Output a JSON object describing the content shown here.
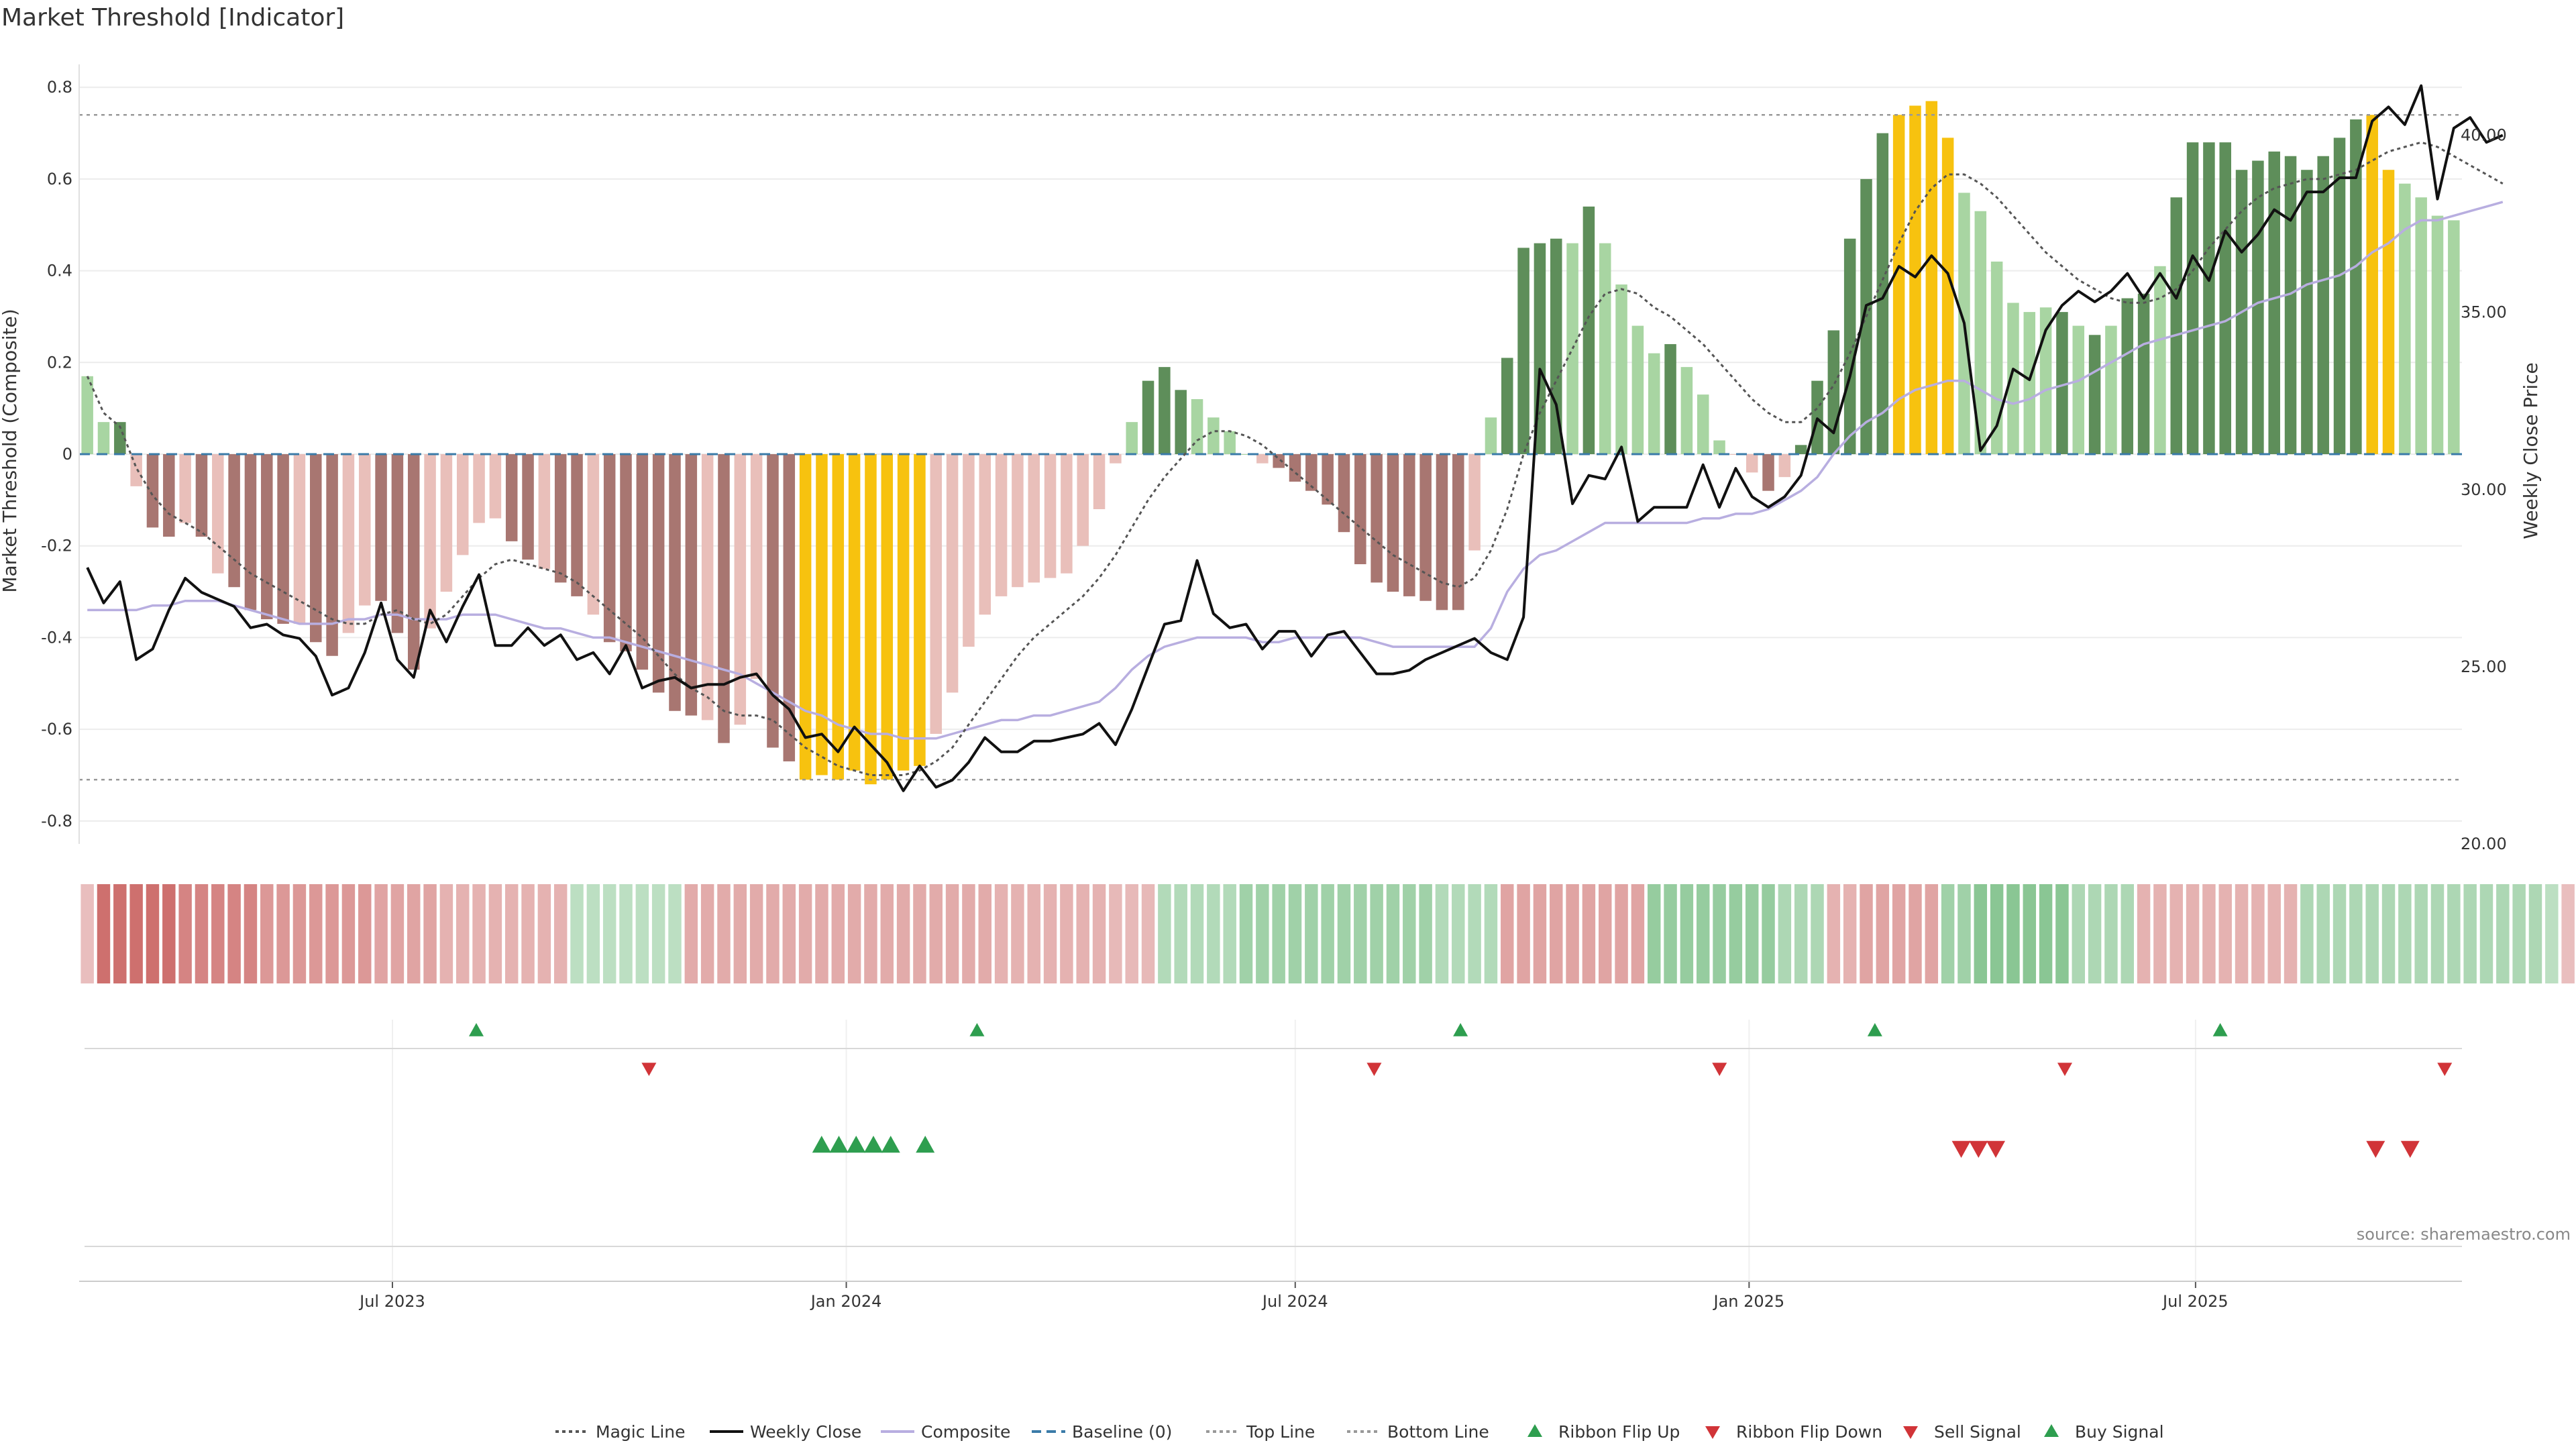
{
  "chart_data": {
    "type": "bar",
    "title": "Market Threshold [Indicator]",
    "ylabel_left": "Market Threshold (Composite)",
    "ylabel_right": "Weekly Close Price",
    "ylim_left": [
      -0.85,
      0.85
    ],
    "ylim_right": [
      20.0,
      42.0
    ],
    "yticks_left": [
      "0.8",
      "0.6",
      "0.4",
      "0.2",
      "0",
      "-0.2",
      "-0.4",
      "-0.6",
      "-0.8"
    ],
    "yticks_left_values": [
      0.8,
      0.6,
      0.4,
      0.2,
      0,
      -0.2,
      -0.4,
      -0.6,
      -0.8
    ],
    "yticks_right": [
      "40.00",
      "35.00",
      "30.00",
      "25.00",
      "20.00"
    ],
    "yticks_right_values": [
      40,
      35,
      30,
      25,
      20
    ],
    "x_range": [
      "2023-02-24",
      "2025-10-17"
    ],
    "xticks": [
      "Jul 2023",
      "Jan 2024",
      "Jul 2024",
      "Jan 2025",
      "Jul 2025"
    ],
    "xticks_dates": [
      "2023-07-01",
      "2024-01-01",
      "2024-07-01",
      "2025-01-01",
      "2025-07-01"
    ],
    "top_line": 0.74,
    "bottom_line": -0.71,
    "grid": true,
    "legend_placement": "bottom-center",
    "colors": {
      "strong_green": "#5e8e5a",
      "light_green": "#a8d5a2",
      "strong_red": "#a87671",
      "light_red": "#e9bfba",
      "extreme": "#f7c20f",
      "weekly_close": "#111111",
      "composite": "#b8aee0",
      "magic": "#555555",
      "baseline": "#3a7ba8",
      "flip_up": "#2e9e4f",
      "flip_down": "#d13438"
    },
    "bars": [
      0.17,
      0.07,
      0.07,
      -0.07,
      -0.16,
      -0.18,
      -0.15,
      -0.18,
      -0.26,
      -0.29,
      -0.34,
      -0.36,
      -0.37,
      -0.37,
      -0.41,
      -0.44,
      -0.39,
      -0.33,
      -0.32,
      -0.39,
      -0.47,
      -0.38,
      -0.3,
      -0.22,
      -0.15,
      -0.14,
      -0.19,
      -0.23,
      -0.25,
      -0.28,
      -0.31,
      -0.35,
      -0.41,
      -0.43,
      -0.47,
      -0.52,
      -0.56,
      -0.57,
      -0.58,
      -0.63,
      -0.59,
      -0.49,
      -0.64,
      -0.67,
      -0.71,
      -0.7,
      -0.71,
      -0.69,
      -0.72,
      -0.71,
      -0.69,
      -0.68,
      -0.61,
      -0.52,
      -0.42,
      -0.35,
      -0.31,
      -0.29,
      -0.28,
      -0.27,
      -0.26,
      -0.2,
      -0.12,
      -0.02,
      0.07,
      0.16,
      0.19,
      0.14,
      0.12,
      0.08,
      0.05,
      0.0,
      -0.02,
      -0.03,
      -0.06,
      -0.08,
      -0.11,
      -0.17,
      -0.24,
      -0.28,
      -0.3,
      -0.31,
      -0.32,
      -0.34,
      -0.34,
      -0.21,
      0.08,
      0.21,
      0.45,
      0.46,
      0.47,
      0.46,
      0.54,
      0.46,
      0.37,
      0.28,
      0.22,
      0.24,
      0.19,
      0.13,
      0.03,
      0.0,
      -0.04,
      -0.08,
      -0.05,
      0.02,
      0.16,
      0.27,
      0.47,
      0.6,
      0.7,
      0.74,
      0.76,
      0.77,
      0.69,
      0.57,
      0.53,
      0.42,
      0.33,
      0.31,
      0.32,
      0.31,
      0.28,
      0.26,
      0.28,
      0.34,
      0.35,
      0.41,
      0.56,
      0.68,
      0.68,
      0.68,
      0.62,
      0.64,
      0.66,
      0.65,
      0.62,
      0.65,
      0.69,
      0.73,
      0.74,
      0.62,
      0.59,
      0.56,
      0.52,
      0.51
    ],
    "bar_classes": [
      "lg",
      "lg",
      "sg",
      "lr",
      "sr",
      "sr",
      "lr",
      "sr",
      "lr",
      "sr",
      "sr",
      "sr",
      "sr",
      "lr",
      "sr",
      "sr",
      "lr",
      "lr",
      "sr",
      "sr",
      "sr",
      "lr",
      "lr",
      "lr",
      "lr",
      "lr",
      "sr",
      "sr",
      "lr",
      "sr",
      "sr",
      "lr",
      "sr",
      "sr",
      "sr",
      "sr",
      "sr",
      "sr",
      "lr",
      "sr",
      "lr",
      "lr",
      "sr",
      "sr",
      "ex",
      "ex",
      "ex",
      "ex",
      "ex",
      "ex",
      "ex",
      "ex",
      "lr",
      "lr",
      "lr",
      "lr",
      "lr",
      "lr",
      "lr",
      "lr",
      "lr",
      "lr",
      "lr",
      "lr",
      "lg",
      "sg",
      "sg",
      "sg",
      "lg",
      "lg",
      "lg",
      "lg",
      "lr",
      "sr",
      "sr",
      "sr",
      "sr",
      "sr",
      "sr",
      "sr",
      "sr",
      "sr",
      "sr",
      "sr",
      "sr",
      "lr",
      "lg",
      "sg",
      "sg",
      "sg",
      "sg",
      "lg",
      "sg",
      "lg",
      "lg",
      "lg",
      "lg",
      "sg",
      "lg",
      "lg",
      "lg",
      "lr",
      "lr",
      "sr",
      "lr",
      "sg",
      "sg",
      "sg",
      "sg",
      "sg",
      "sg",
      "ex",
      "ex",
      "ex",
      "ex",
      "lg",
      "lg",
      "lg",
      "lg",
      "lg",
      "lg",
      "sg",
      "lg",
      "sg",
      "lg",
      "sg",
      "sg",
      "lg",
      "sg",
      "sg",
      "sg",
      "sg",
      "sg",
      "sg",
      "sg",
      "sg",
      "sg",
      "sg",
      "sg",
      "sg",
      "ex",
      "ex",
      "lg",
      "lg",
      "lg",
      "lg",
      "lg"
    ],
    "weekly_close": [
      27.8,
      26.8,
      27.4,
      25.2,
      25.5,
      26.6,
      27.5,
      27.1,
      26.9,
      26.7,
      26.1,
      26.2,
      25.9,
      25.8,
      25.3,
      24.2,
      24.4,
      25.4,
      26.8,
      25.2,
      24.7,
      26.6,
      25.7,
      26.7,
      27.6,
      25.6,
      25.6,
      26.1,
      25.6,
      25.9,
      25.2,
      25.4,
      24.8,
      25.6,
      24.4,
      24.6,
      24.7,
      24.4,
      24.5,
      24.5,
      24.7,
      24.8,
      24.2,
      23.8,
      23.0,
      23.1,
      22.6,
      23.3,
      22.8,
      22.3,
      21.5,
      22.2,
      21.6,
      21.8,
      22.3,
      23.0,
      22.6,
      22.6,
      22.9,
      22.9,
      23.0,
      23.1,
      23.4,
      22.8,
      23.8,
      25.0,
      26.2,
      26.3,
      28.0,
      26.5,
      26.1,
      26.2,
      25.5,
      26.0,
      26.0,
      25.3,
      25.9,
      26.0,
      25.4,
      24.8,
      24.8,
      24.9,
      25.2,
      25.4,
      25.6,
      25.8,
      25.4,
      25.2,
      26.4,
      33.4,
      32.4,
      29.6,
      30.4,
      30.3,
      31.2,
      29.1,
      29.5,
      29.5,
      29.5,
      30.7,
      29.5,
      30.6,
      29.8,
      29.5,
      29.8,
      30.4,
      32.0,
      31.6,
      33.2,
      35.2,
      35.4,
      36.3,
      36.0,
      36.6,
      36.1,
      34.7,
      31.1,
      31.8,
      33.4,
      33.1,
      34.5,
      35.2,
      35.6,
      35.3,
      35.6,
      36.1,
      35.4,
      36.1,
      35.4,
      36.6,
      35.9,
      37.3,
      36.7,
      37.2,
      37.9,
      37.6,
      38.4,
      38.4,
      38.8,
      38.8,
      40.4,
      40.8,
      40.3,
      41.4,
      38.2,
      40.2,
      40.5,
      39.8,
      40.0
    ],
    "composite": [
      -0.34,
      -0.34,
      -0.34,
      -0.34,
      -0.33,
      -0.33,
      -0.32,
      -0.32,
      -0.32,
      -0.33,
      -0.34,
      -0.35,
      -0.36,
      -0.37,
      -0.37,
      -0.37,
      -0.36,
      -0.36,
      -0.35,
      -0.35,
      -0.36,
      -0.36,
      -0.36,
      -0.35,
      -0.35,
      -0.35,
      -0.36,
      -0.37,
      -0.38,
      -0.38,
      -0.39,
      -0.4,
      -0.4,
      -0.41,
      -0.42,
      -0.43,
      -0.44,
      -0.45,
      -0.46,
      -0.47,
      -0.48,
      -0.5,
      -0.52,
      -0.54,
      -0.56,
      -0.57,
      -0.59,
      -0.6,
      -0.61,
      -0.61,
      -0.62,
      -0.62,
      -0.62,
      -0.61,
      -0.6,
      -0.59,
      -0.58,
      -0.58,
      -0.57,
      -0.57,
      -0.56,
      -0.55,
      -0.54,
      -0.51,
      -0.47,
      -0.44,
      -0.42,
      -0.41,
      -0.4,
      -0.4,
      -0.4,
      -0.4,
      -0.41,
      -0.41,
      -0.4,
      -0.4,
      -0.4,
      -0.4,
      -0.4,
      -0.41,
      -0.42,
      -0.42,
      -0.42,
      -0.42,
      -0.42,
      -0.42,
      -0.38,
      -0.3,
      -0.25,
      -0.22,
      -0.21,
      -0.19,
      -0.17,
      -0.15,
      -0.15,
      -0.15,
      -0.15,
      -0.15,
      -0.15,
      -0.14,
      -0.14,
      -0.13,
      -0.13,
      -0.12,
      -0.1,
      -0.08,
      -0.05,
      0.0,
      0.04,
      0.07,
      0.09,
      0.12,
      0.14,
      0.15,
      0.16,
      0.16,
      0.14,
      0.12,
      0.11,
      0.12,
      0.14,
      0.15,
      0.16,
      0.18,
      0.2,
      0.22,
      0.24,
      0.25,
      0.26,
      0.27,
      0.28,
      0.29,
      0.31,
      0.33,
      0.34,
      0.35,
      0.37,
      0.38,
      0.39,
      0.41,
      0.44,
      0.46,
      0.49,
      0.51,
      0.51,
      0.52,
      0.53,
      0.54,
      0.55
    ],
    "magic_line": [
      0.17,
      0.09,
      0.06,
      -0.03,
      -0.09,
      -0.13,
      -0.15,
      -0.17,
      -0.2,
      -0.23,
      -0.26,
      -0.28,
      -0.3,
      -0.32,
      -0.34,
      -0.36,
      -0.37,
      -0.37,
      -0.35,
      -0.34,
      -0.36,
      -0.37,
      -0.35,
      -0.31,
      -0.27,
      -0.24,
      -0.23,
      -0.24,
      -0.25,
      -0.26,
      -0.28,
      -0.31,
      -0.34,
      -0.37,
      -0.4,
      -0.44,
      -0.48,
      -0.51,
      -0.53,
      -0.56,
      -0.57,
      -0.57,
      -0.58,
      -0.61,
      -0.64,
      -0.66,
      -0.68,
      -0.69,
      -0.7,
      -0.7,
      -0.7,
      -0.69,
      -0.67,
      -0.64,
      -0.59,
      -0.54,
      -0.49,
      -0.44,
      -0.4,
      -0.37,
      -0.34,
      -0.31,
      -0.27,
      -0.22,
      -0.16,
      -0.1,
      -0.05,
      -0.01,
      0.03,
      0.05,
      0.05,
      0.04,
      0.02,
      -0.01,
      -0.04,
      -0.07,
      -0.1,
      -0.13,
      -0.16,
      -0.19,
      -0.22,
      -0.24,
      -0.26,
      -0.28,
      -0.29,
      -0.27,
      -0.21,
      -0.12,
      0.0,
      0.09,
      0.16,
      0.23,
      0.3,
      0.35,
      0.36,
      0.35,
      0.32,
      0.3,
      0.27,
      0.24,
      0.2,
      0.16,
      0.12,
      0.09,
      0.07,
      0.07,
      0.1,
      0.15,
      0.22,
      0.3,
      0.38,
      0.46,
      0.53,
      0.58,
      0.61,
      0.61,
      0.59,
      0.56,
      0.52,
      0.48,
      0.44,
      0.41,
      0.38,
      0.36,
      0.34,
      0.33,
      0.33,
      0.34,
      0.36,
      0.4,
      0.45,
      0.49,
      0.53,
      0.56,
      0.58,
      0.59,
      0.6,
      0.6,
      0.61,
      0.62,
      0.64,
      0.66,
      0.67,
      0.68,
      0.67,
      0.65,
      0.63,
      0.61,
      0.59
    ],
    "ribbon_intensity": [
      -0.25,
      -0.85,
      -0.85,
      -0.85,
      -0.85,
      -0.85,
      -0.7,
      -0.7,
      -0.7,
      -0.7,
      -0.7,
      -0.55,
      -0.55,
      -0.55,
      -0.55,
      -0.55,
      -0.55,
      -0.55,
      -0.45,
      -0.45,
      -0.45,
      -0.45,
      -0.35,
      -0.35,
      -0.35,
      -0.35,
      -0.35,
      -0.35,
      -0.35,
      -0.35,
      0.3,
      0.3,
      0.3,
      0.3,
      0.3,
      0.3,
      0.3,
      -0.4,
      -0.4,
      -0.4,
      -0.4,
      -0.4,
      -0.4,
      -0.4,
      -0.4,
      -0.4,
      -0.4,
      -0.4,
      -0.4,
      -0.4,
      -0.4,
      -0.4,
      -0.4,
      -0.4,
      -0.4,
      -0.4,
      -0.35,
      -0.35,
      -0.35,
      -0.35,
      -0.35,
      -0.35,
      -0.35,
      -0.3,
      -0.3,
      -0.3,
      0.4,
      0.4,
      0.4,
      0.4,
      0.4,
      0.55,
      0.55,
      0.55,
      0.55,
      0.55,
      0.55,
      0.55,
      0.55,
      0.55,
      0.55,
      0.55,
      0.55,
      0.4,
      0.4,
      0.4,
      0.4,
      -0.45,
      -0.45,
      -0.45,
      -0.45,
      -0.45,
      -0.45,
      -0.45,
      -0.45,
      -0.45,
      0.65,
      0.65,
      0.65,
      0.65,
      0.65,
      0.65,
      0.65,
      0.65,
      0.45,
      0.45,
      0.45,
      -0.35,
      -0.35,
      -0.45,
      -0.45,
      -0.45,
      -0.45,
      -0.45,
      0.55,
      0.55,
      0.75,
      0.75,
      0.75,
      0.75,
      0.75,
      0.75,
      0.45,
      0.45,
      0.45,
      0.45,
      -0.35,
      -0.35,
      -0.35,
      -0.35,
      -0.35,
      -0.35,
      -0.35,
      -0.35,
      -0.35,
      -0.35,
      0.45,
      0.45,
      0.45,
      0.45,
      0.45,
      0.45,
      0.45,
      0.45,
      0.45,
      0.45,
      0.45,
      0.45,
      0.45,
      0.45,
      0.45,
      0.3,
      -0.25
    ],
    "ribbon_flip_up": [
      "2023-08-04",
      "2024-02-23",
      "2024-09-06",
      "2025-02-21",
      "2025-07-11"
    ],
    "ribbon_flip_down": [
      "2023-10-13",
      "2024-08-02",
      "2024-12-20",
      "2025-05-09",
      "2025-10-10"
    ],
    "buy_signals": [
      "2023-12-22",
      "2023-12-29",
      "2024-01-05",
      "2024-01-12",
      "2024-01-19",
      "2024-02-02"
    ],
    "sell_signals": [
      "2025-03-28",
      "2025-04-04",
      "2025-04-11",
      "2025-09-12",
      "2025-09-26"
    ],
    "source": "source: sharemaestro.com",
    "legend": [
      {
        "label": "Magic Line",
        "kind": "dotted-line",
        "color": "#555555"
      },
      {
        "label": "Weekly Close",
        "kind": "solid-line",
        "color": "#111111"
      },
      {
        "label": "Composite",
        "kind": "solid-line",
        "color": "#b8aee0"
      },
      {
        "label": "Baseline (0)",
        "kind": "dashed-line",
        "color": "#3a7ba8"
      },
      {
        "label": "Top Line",
        "kind": "dotted-line",
        "color": "#999999"
      },
      {
        "label": "Bottom Line",
        "kind": "dotted-line",
        "color": "#999999"
      },
      {
        "label": "Ribbon Flip Up",
        "kind": "triangle-up",
        "color": "#2e9e4f"
      },
      {
        "label": "Ribbon Flip Down",
        "kind": "triangle-down",
        "color": "#d13438"
      },
      {
        "label": "Sell Signal",
        "kind": "triangle-down",
        "color": "#d13438"
      },
      {
        "label": "Buy Signal",
        "kind": "triangle-up",
        "color": "#2e9e4f"
      }
    ]
  }
}
